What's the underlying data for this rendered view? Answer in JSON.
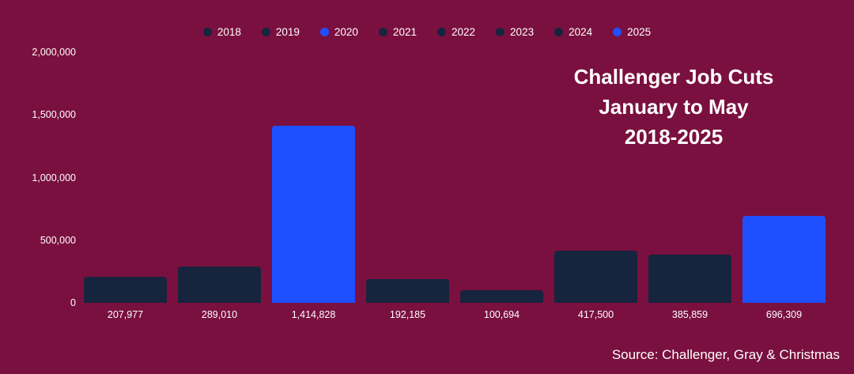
{
  "colors": {
    "background": "#7A103F",
    "bar_default": "#17243E",
    "bar_highlight": "#1E50FF",
    "text": "#FFFFFF"
  },
  "title_lines": {
    "line1": "Challenger Job Cuts",
    "line2": "January to May",
    "line3": "2018-2025"
  },
  "source": "Source: Challenger, Gray & Christmas",
  "chart_data": {
    "type": "bar",
    "title": "Challenger Job Cuts January to May 2018-2025",
    "xlabel": "",
    "ylabel": "",
    "categories": [
      "2018",
      "2019",
      "2020",
      "2021",
      "2022",
      "2023",
      "2024",
      "2025"
    ],
    "values": [
      207977,
      289010,
      1414828,
      192185,
      100694,
      417500,
      385859,
      696309
    ],
    "value_labels": [
      "207,977",
      "289,010",
      "1,414,828",
      "192,185",
      "100,694",
      "417,500",
      "385,859",
      "696,309"
    ],
    "highlight_categories": [
      "2020",
      "2025"
    ],
    "ylim": [
      0,
      2000000
    ],
    "yticks": [
      {
        "value": 0,
        "label": "0"
      },
      {
        "value": 500000,
        "label": "500,000"
      },
      {
        "value": 1000000,
        "label": "1,000,000"
      },
      {
        "value": 1500000,
        "label": "1,500,000"
      },
      {
        "value": 2000000,
        "label": "2,000,000"
      }
    ],
    "grid": false,
    "legend_position": "top"
  }
}
